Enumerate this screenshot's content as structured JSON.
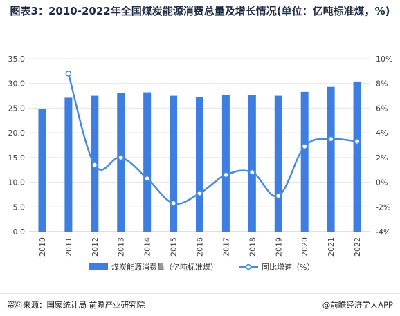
{
  "title": "图表3：2010-2022年全国煤炭能源消费总量及增长情况(单位：亿吨标准煤，%)",
  "chart_data": {
    "type": "bar",
    "categories": [
      "2010",
      "2011",
      "2012",
      "2013",
      "2014",
      "2015",
      "2016",
      "2017",
      "2018",
      "2019",
      "2020",
      "2021",
      "2022"
    ],
    "series": [
      {
        "name": "煤炭能源消费量（亿吨标准煤）",
        "type": "bar",
        "axis": "left",
        "values": [
          24.9,
          27.1,
          27.5,
          28.1,
          28.2,
          27.5,
          27.3,
          27.6,
          27.7,
          27.5,
          28.3,
          29.3,
          30.4
        ]
      },
      {
        "name": "同比增速（%）",
        "type": "line",
        "axis": "right",
        "values": [
          null,
          8.8,
          1.4,
          2.0,
          0.3,
          -1.7,
          -0.9,
          0.6,
          0.8,
          -1.1,
          2.9,
          3.5,
          3.3
        ]
      }
    ],
    "y_left": {
      "min": 0,
      "max": 35,
      "step": 5,
      "ticks": [
        "0.0",
        "5.0",
        "10.0",
        "15.0",
        "20.0",
        "25.0",
        "30.0",
        "35.0"
      ]
    },
    "y_right": {
      "min": -4,
      "max": 10,
      "step": 2,
      "ticks": [
        "-4%",
        "-2%",
        "0%",
        "2%",
        "4%",
        "6%",
        "8%",
        "10%"
      ]
    },
    "grid": true,
    "legend_position": "bottom",
    "colors": {
      "bar": "#3d7ee0",
      "line": "#4a8ad8",
      "marker_fill": "#ffffff"
    }
  },
  "footer": {
    "source": "资料来源：国家统计局 前瞻产业研究院",
    "brand": "@前瞻经济学人APP"
  }
}
